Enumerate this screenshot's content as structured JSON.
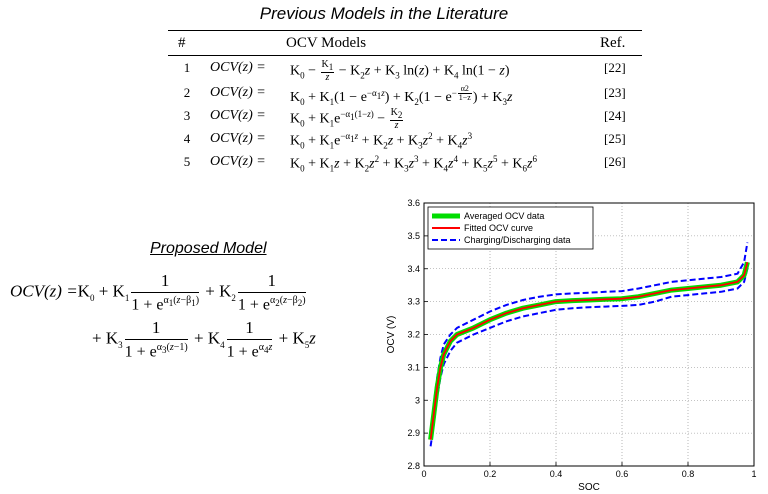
{
  "table": {
    "title": "Previous Models in the Literature",
    "headers": {
      "num": "#",
      "models": "OCV Models",
      "ref": "Ref."
    },
    "rows": [
      {
        "num": "1",
        "lhs": "OCV(z) =",
        "ref": "[22]"
      },
      {
        "num": "2",
        "lhs": "OCV(z) =",
        "ref": "[23]"
      },
      {
        "num": "3",
        "lhs": "OCV(z) =",
        "ref": "[24]"
      },
      {
        "num": "4",
        "lhs": "OCV(z) =",
        "ref": "[25]"
      },
      {
        "num": "5",
        "lhs": "OCV(z) =",
        "ref": "[26]"
      }
    ]
  },
  "proposed": {
    "title": "Proposed Model",
    "lhs": "OCV(z) =",
    "one": "1"
  },
  "chart_data": {
    "type": "line",
    "title": "",
    "xlabel": "SOC",
    "ylabel": "OCV (V)",
    "xlim": [
      0,
      1
    ],
    "ylim": [
      2.8,
      3.6
    ],
    "xticks": [
      "0",
      "0.2",
      "0.4",
      "0.6",
      "0.8",
      "1"
    ],
    "yticks": [
      "2.8",
      "2.9",
      "3",
      "3.1",
      "3.2",
      "3.3",
      "3.4",
      "3.5",
      "3.6"
    ],
    "grid": true,
    "legend_position": "top-left",
    "series": [
      {
        "name": "Averaged OCV data",
        "color": "#00dd00",
        "style": "solid",
        "x": [
          0.02,
          0.03,
          0.04,
          0.05,
          0.06,
          0.08,
          0.1,
          0.15,
          0.2,
          0.25,
          0.3,
          0.35,
          0.4,
          0.45,
          0.5,
          0.55,
          0.6,
          0.65,
          0.7,
          0.75,
          0.8,
          0.85,
          0.9,
          0.95,
          0.97,
          0.98
        ],
        "y": [
          2.88,
          2.96,
          3.04,
          3.1,
          3.14,
          3.18,
          3.2,
          3.22,
          3.245,
          3.265,
          3.28,
          3.29,
          3.3,
          3.303,
          3.305,
          3.307,
          3.309,
          3.315,
          3.325,
          3.335,
          3.34,
          3.345,
          3.35,
          3.36,
          3.38,
          3.42
        ]
      },
      {
        "name": "Fitted OCV curve",
        "color": "#ff0000",
        "style": "solid",
        "x": [
          0.02,
          0.03,
          0.04,
          0.05,
          0.06,
          0.08,
          0.1,
          0.15,
          0.2,
          0.25,
          0.3,
          0.35,
          0.4,
          0.45,
          0.5,
          0.55,
          0.6,
          0.65,
          0.7,
          0.75,
          0.8,
          0.85,
          0.9,
          0.95,
          0.97,
          0.98
        ],
        "y": [
          2.88,
          2.96,
          3.04,
          3.1,
          3.14,
          3.18,
          3.2,
          3.22,
          3.245,
          3.265,
          3.28,
          3.29,
          3.3,
          3.303,
          3.305,
          3.307,
          3.309,
          3.315,
          3.325,
          3.335,
          3.34,
          3.345,
          3.35,
          3.36,
          3.38,
          3.42
        ]
      },
      {
        "name": "Charging/Discharging data",
        "color": "#0000ff",
        "style": "dashed",
        "x": [
          0.02,
          0.03,
          0.04,
          0.05,
          0.06,
          0.08,
          0.1,
          0.15,
          0.2,
          0.25,
          0.3,
          0.35,
          0.4,
          0.45,
          0.5,
          0.55,
          0.6,
          0.65,
          0.7,
          0.75,
          0.8,
          0.85,
          0.9,
          0.95,
          0.97,
          0.98
        ],
        "y": [
          2.9,
          2.99,
          3.07,
          3.13,
          3.17,
          3.2,
          3.22,
          3.245,
          3.27,
          3.29,
          3.305,
          3.315,
          3.322,
          3.325,
          3.327,
          3.33,
          3.332,
          3.34,
          3.35,
          3.36,
          3.365,
          3.37,
          3.375,
          3.385,
          3.42,
          3.48
        ]
      },
      {
        "name": "",
        "color": "#0000ff",
        "style": "dashed",
        "x": [
          0.02,
          0.03,
          0.04,
          0.05,
          0.06,
          0.08,
          0.1,
          0.15,
          0.2,
          0.25,
          0.3,
          0.35,
          0.4,
          0.45,
          0.5,
          0.55,
          0.6,
          0.65,
          0.7,
          0.75,
          0.8,
          0.85,
          0.9,
          0.95,
          0.97,
          0.98
        ],
        "y": [
          2.86,
          2.93,
          3.01,
          3.07,
          3.11,
          3.15,
          3.175,
          3.2,
          3.22,
          3.24,
          3.255,
          3.265,
          3.275,
          3.28,
          3.283,
          3.285,
          3.287,
          3.29,
          3.3,
          3.315,
          3.32,
          3.325,
          3.33,
          3.34,
          3.36,
          3.4
        ]
      }
    ]
  }
}
